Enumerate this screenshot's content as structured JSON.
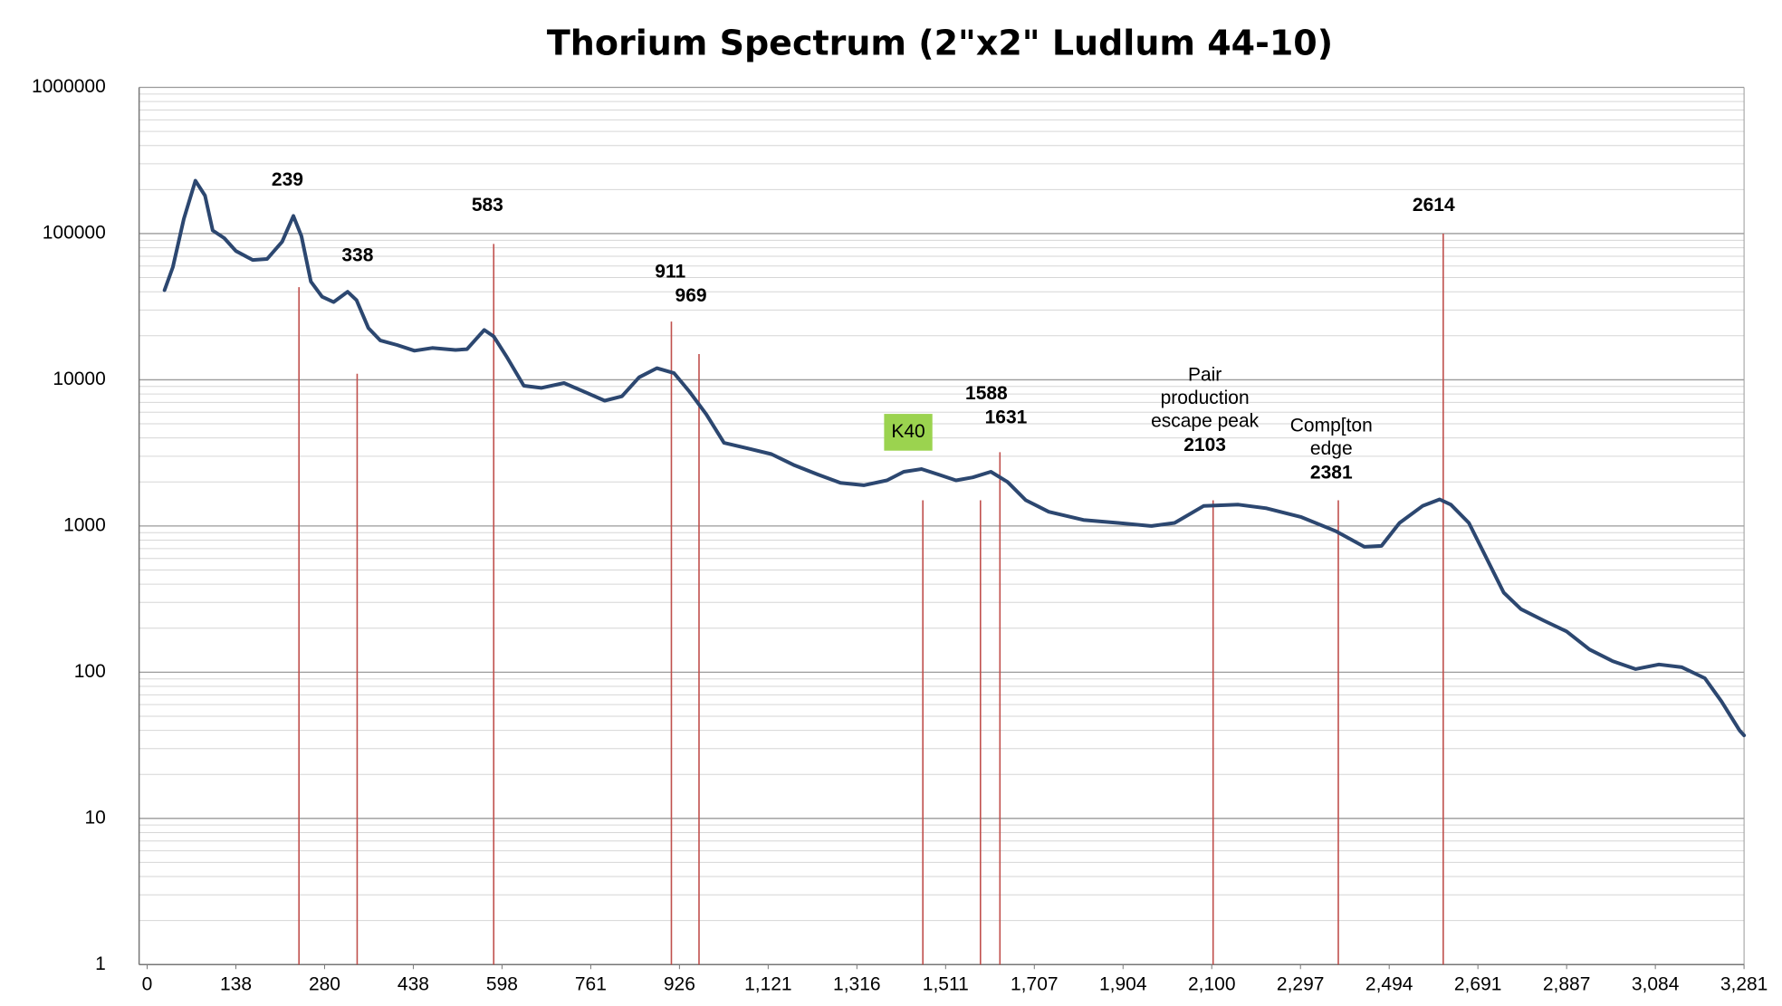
{
  "chart_data": {
    "type": "line",
    "title": "Thorium Spectrum (2\"x2\" Ludlum 44-10)",
    "log_y": true,
    "grid": true,
    "minor_grid": true,
    "xlim": [
      0,
      3281
    ],
    "xticks": [
      0,
      138,
      280,
      438,
      598,
      761,
      926,
      {
        "value": 1121,
        "label": "1,121"
      },
      {
        "value": 1316,
        "label": "1,316"
      },
      {
        "value": 1511,
        "label": "1,511"
      },
      {
        "value": 1707,
        "label": "1,707"
      },
      {
        "value": 1904,
        "label": "1,904"
      },
      {
        "value": 2100,
        "label": "2,100"
      },
      {
        "value": 2297,
        "label": "2,297"
      },
      {
        "value": 2494,
        "label": "2,494"
      },
      {
        "value": 2691,
        "label": "2,691"
      },
      {
        "value": 2887,
        "label": "2,887"
      },
      {
        "value": 3084,
        "label": "3,084"
      },
      {
        "value": 3281,
        "label": "3,281"
      }
    ],
    "ylim": [
      1,
      1000000
    ],
    "yticks": [
      1,
      10,
      100,
      1000,
      10000,
      100000,
      1000000
    ],
    "series": [
      {
        "color": "#2c4770",
        "x": [
          27,
          40,
          57,
          75,
          90,
          102,
          120,
          138,
          165,
          188,
          212,
          230,
          243,
          258,
          276,
          296,
          321,
          337,
          358,
          379,
          409,
          440,
          472,
          514,
          535,
          549,
          566,
          583,
          606,
          638,
          670,
          712,
          755,
          787,
          819,
          851,
          884,
          916,
          948,
          985,
          1024,
          1075,
          1128,
          1179,
          1230,
          1280,
          1331,
          1382,
          1419,
          1458,
          1495,
          1534,
          1571,
          1611,
          1648,
          1688,
          1739,
          1816,
          1893,
          1967,
          2018,
          2082,
          2159,
          2222,
          2299,
          2376,
          2439,
          2477,
          2517,
          2568,
          2606,
          2631,
          2671,
          2709,
          2748,
          2786,
          2837,
          2887,
          2938,
          2989,
          3040,
          3092,
          3143,
          3194,
          3231,
          3271,
          3281
        ],
        "values": [
          41000,
          59000,
          126000,
          230000,
          182000,
          105000,
          93000,
          76000,
          66000,
          67000,
          88000,
          132000,
          96000,
          47000,
          37000,
          34000,
          40000,
          35000,
          22600,
          18600,
          17300,
          15800,
          16500,
          16000,
          16200,
          18600,
          21900,
          19800,
          14500,
          9100,
          8800,
          9500,
          8100,
          7200,
          7700,
          10400,
          12000,
          11100,
          8300,
          5800,
          3700,
          3400,
          3100,
          2600,
          2250,
          1970,
          1900,
          2050,
          2350,
          2450,
          2250,
          2050,
          2150,
          2350,
          2000,
          1500,
          1250,
          1100,
          1050,
          1000,
          1050,
          1370,
          1400,
          1320,
          1150,
          920,
          720,
          730,
          1050,
          1370,
          1520,
          1400,
          1050,
          610,
          350,
          270,
          225,
          190,
          143,
          119,
          105,
          113,
          108,
          91,
          63,
          40,
          37
        ]
      }
    ],
    "markers": {
      "color": "#c0504d",
      "x": [
        239,
        338,
        583,
        911,
        969,
        1461,
        1588,
        1631,
        2103,
        2381,
        2614
      ],
      "values": [
        43000,
        11000,
        85000,
        25000,
        15000,
        1500,
        1500,
        3200,
        1500,
        1500,
        100000
      ]
    },
    "annotations": [
      {
        "label": "239"
      },
      {
        "label": "338"
      },
      {
        "label": "583"
      },
      {
        "label": "911"
      },
      {
        "label": "969"
      },
      {
        "note": [
          "K40"
        ],
        "box": "#9bd34f"
      },
      {
        "label": "1588"
      },
      {
        "label": "1631"
      },
      {
        "note": [
          "Pair",
          "production",
          "escape peak"
        ],
        "label": "2103"
      },
      {
        "note": [
          "Comp[ton",
          "edge"
        ],
        "label": "2381"
      },
      {
        "label": "2614"
      }
    ]
  }
}
